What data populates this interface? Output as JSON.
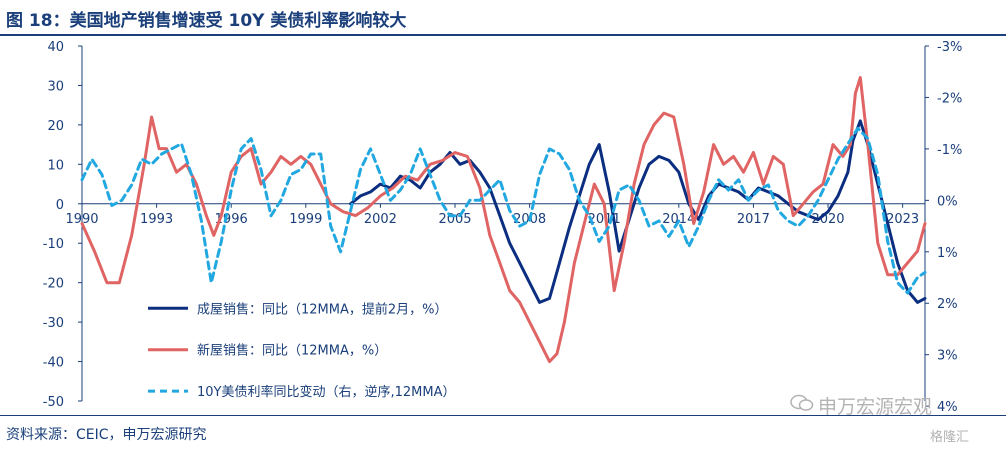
{
  "page": {
    "title": "图 18：美国地产销售增速受 10Y 美债利率影响较大",
    "source": "资料来源：CEIC，申万宏源研究",
    "watermark": "申万宏源宏观",
    "watermark2": "格隆汇"
  },
  "chart_data": {
    "type": "line",
    "x_ticks": [
      1990,
      1993,
      1996,
      1999,
      2002,
      2005,
      2008,
      2011,
      2014,
      2017,
      2020,
      2023
    ],
    "xlim": [
      1990,
      2023.9
    ],
    "ylim_left": [
      -50,
      40
    ],
    "y_ticks_left": [
      40,
      30,
      20,
      10,
      0,
      -10,
      -20,
      -30,
      -40,
      -50
    ],
    "ylim_right": [
      3.9,
      -3
    ],
    "right_inverted": true,
    "y_ticks_right": [
      "-3%",
      "-2%",
      "-1%",
      "0%",
      "1%",
      "2%",
      "3%",
      "4%"
    ],
    "y_ticks_right_values": [
      -3,
      -2,
      -1,
      0,
      1,
      2,
      3,
      4
    ],
    "grid": false,
    "legend_position": "bottom-left",
    "series": [
      {
        "name": "成屋销售：同比（12MMA，提前2月，%）",
        "axis": "left",
        "color": "#0b2e80",
        "dash": false,
        "x": [
          2000.8,
          2001.2,
          2001.6,
          2002.0,
          2002.4,
          2002.8,
          2003.2,
          2003.6,
          2004.0,
          2004.4,
          2004.8,
          2005.2,
          2005.6,
          2006.0,
          2006.4,
          2006.8,
          2007.2,
          2007.6,
          2008.0,
          2008.4,
          2008.8,
          2009.2,
          2009.6,
          2010.0,
          2010.4,
          2010.8,
          2011.2,
          2011.6,
          2012.0,
          2012.4,
          2012.8,
          2013.2,
          2013.6,
          2014.0,
          2014.4,
          2014.8,
          2015.2,
          2015.6,
          2016.0,
          2016.4,
          2016.8,
          2017.2,
          2017.6,
          2018.0,
          2018.4,
          2018.8,
          2019.2,
          2019.6,
          2020.0,
          2020.4,
          2020.8,
          2021.0,
          2021.3,
          2021.6,
          2022.0,
          2022.4,
          2022.8,
          2023.2,
          2023.6,
          2023.9
        ],
        "values": [
          0,
          2,
          3,
          5,
          4,
          7,
          6,
          4,
          8,
          10,
          13,
          10,
          11,
          8,
          4,
          -3,
          -10,
          -15,
          -20,
          -25,
          -24,
          -15,
          -6,
          2,
          10,
          15,
          3,
          -12,
          -4,
          4,
          10,
          12,
          11,
          8,
          0,
          -4,
          2,
          5,
          4,
          3,
          1,
          4,
          3,
          2,
          0,
          -2,
          -3,
          -4,
          -2,
          2,
          8,
          16,
          21,
          15,
          5,
          -5,
          -15,
          -22,
          -25,
          -24
        ]
      },
      {
        "name": "新屋销售：同比（12MMA，%）",
        "axis": "left",
        "color": "#e06464",
        "dash": false,
        "x": [
          1990.0,
          1990.5,
          1991.0,
          1991.5,
          1992.0,
          1992.5,
          1992.8,
          1993.1,
          1993.4,
          1993.8,
          1994.2,
          1994.6,
          1995.0,
          1995.3,
          1995.6,
          1996.0,
          1996.4,
          1996.8,
          1997.2,
          1997.6,
          1998.0,
          1998.4,
          1998.8,
          1999.2,
          1999.6,
          2000.0,
          2000.5,
          2001.0,
          2001.5,
          2002.0,
          2002.5,
          2003.0,
          2003.5,
          2004.0,
          2004.5,
          2005.0,
          2005.5,
          2006.0,
          2006.4,
          2006.8,
          2007.2,
          2007.6,
          2008.0,
          2008.4,
          2008.8,
          2009.1,
          2009.4,
          2009.8,
          2010.2,
          2010.6,
          2011.0,
          2011.4,
          2011.8,
          2012.2,
          2012.6,
          2013.0,
          2013.4,
          2013.8,
          2014.2,
          2014.6,
          2015.0,
          2015.4,
          2015.8,
          2016.2,
          2016.6,
          2017.0,
          2017.4,
          2017.8,
          2018.2,
          2018.6,
          2019.0,
          2019.4,
          2019.8,
          2020.2,
          2020.6,
          2020.9,
          2021.1,
          2021.3,
          2021.6,
          2022.0,
          2022.4,
          2022.8,
          2023.2,
          2023.6,
          2023.9
        ],
        "values": [
          -5,
          -12,
          -20,
          -20,
          -8,
          10,
          22,
          14,
          14,
          8,
          10,
          5,
          -3,
          -8,
          -3,
          8,
          12,
          14,
          5,
          8,
          12,
          10,
          12,
          10,
          5,
          0,
          -2,
          -3,
          -1,
          2,
          4,
          7,
          6,
          10,
          11,
          13,
          12,
          4,
          -8,
          -15,
          -22,
          -25,
          -30,
          -35,
          -40,
          -38,
          -30,
          -15,
          -5,
          5,
          0,
          -22,
          -10,
          5,
          15,
          20,
          23,
          22,
          10,
          -5,
          3,
          15,
          10,
          12,
          8,
          13,
          5,
          12,
          10,
          -3,
          0,
          3,
          5,
          15,
          12,
          15,
          28,
          32,
          15,
          -10,
          -18,
          -18,
          -15,
          -12,
          -5
        ]
      },
      {
        "name": "10Y美债利率同比变动（右，逆序,12MMA）",
        "axis": "right",
        "color": "#22a8e0",
        "dash": true,
        "x": [
          1990.0,
          1990.4,
          1990.8,
          1991.2,
          1991.6,
          1992.0,
          1992.4,
          1992.8,
          1993.2,
          1993.6,
          1994.0,
          1994.4,
          1994.8,
          1995.2,
          1995.6,
          1996.0,
          1996.4,
          1996.8,
          1997.2,
          1997.6,
          1998.0,
          1998.4,
          1998.8,
          1999.2,
          1999.6,
          2000.0,
          2000.4,
          2000.8,
          2001.2,
          2001.6,
          2002.0,
          2002.4,
          2002.8,
          2003.2,
          2003.6,
          2004.0,
          2004.4,
          2004.8,
          2005.2,
          2005.6,
          2006.0,
          2006.4,
          2006.8,
          2007.2,
          2007.6,
          2008.0,
          2008.4,
          2008.8,
          2009.2,
          2009.6,
          2010.0,
          2010.4,
          2010.8,
          2011.2,
          2011.6,
          2012.0,
          2012.4,
          2012.8,
          2013.2,
          2013.6,
          2014.0,
          2014.4,
          2014.8,
          2015.2,
          2015.6,
          2016.0,
          2016.4,
          2016.8,
          2017.2,
          2017.6,
          2018.0,
          2018.4,
          2018.8,
          2019.2,
          2019.6,
          2020.0,
          2020.4,
          2020.8,
          2021.2,
          2021.6,
          2022.0,
          2022.4,
          2022.8,
          2023.2,
          2023.6,
          2023.9
        ],
        "values": [
          -0.4,
          -0.8,
          -0.5,
          0.1,
          0.0,
          -0.3,
          -0.8,
          -0.7,
          -0.9,
          -1.0,
          -1.1,
          -0.5,
          0.4,
          1.6,
          0.8,
          -0.2,
          -1.0,
          -1.2,
          -0.6,
          0.3,
          0.0,
          -0.5,
          -0.6,
          -0.9,
          -0.9,
          0.5,
          1.0,
          0.2,
          -0.6,
          -1.0,
          -0.5,
          0.0,
          -0.2,
          -0.5,
          -1.0,
          -0.5,
          0.0,
          0.3,
          0.3,
          0.0,
          0.0,
          -0.2,
          -0.4,
          0.2,
          0.5,
          0.4,
          -0.5,
          -1.0,
          -0.9,
          -0.6,
          0.0,
          0.3,
          0.8,
          0.5,
          -0.2,
          -0.3,
          0.0,
          0.5,
          0.4,
          0.7,
          0.4,
          0.9,
          0.5,
          0.0,
          -0.4,
          -0.2,
          -0.4,
          0.0,
          -0.2,
          -0.3,
          0.2,
          0.4,
          0.5,
          0.3,
          0.0,
          -0.4,
          -0.8,
          -1.1,
          -1.4,
          -1.2,
          -0.5,
          0.8,
          1.6,
          1.8,
          1.5,
          1.4
        ]
      }
    ]
  }
}
